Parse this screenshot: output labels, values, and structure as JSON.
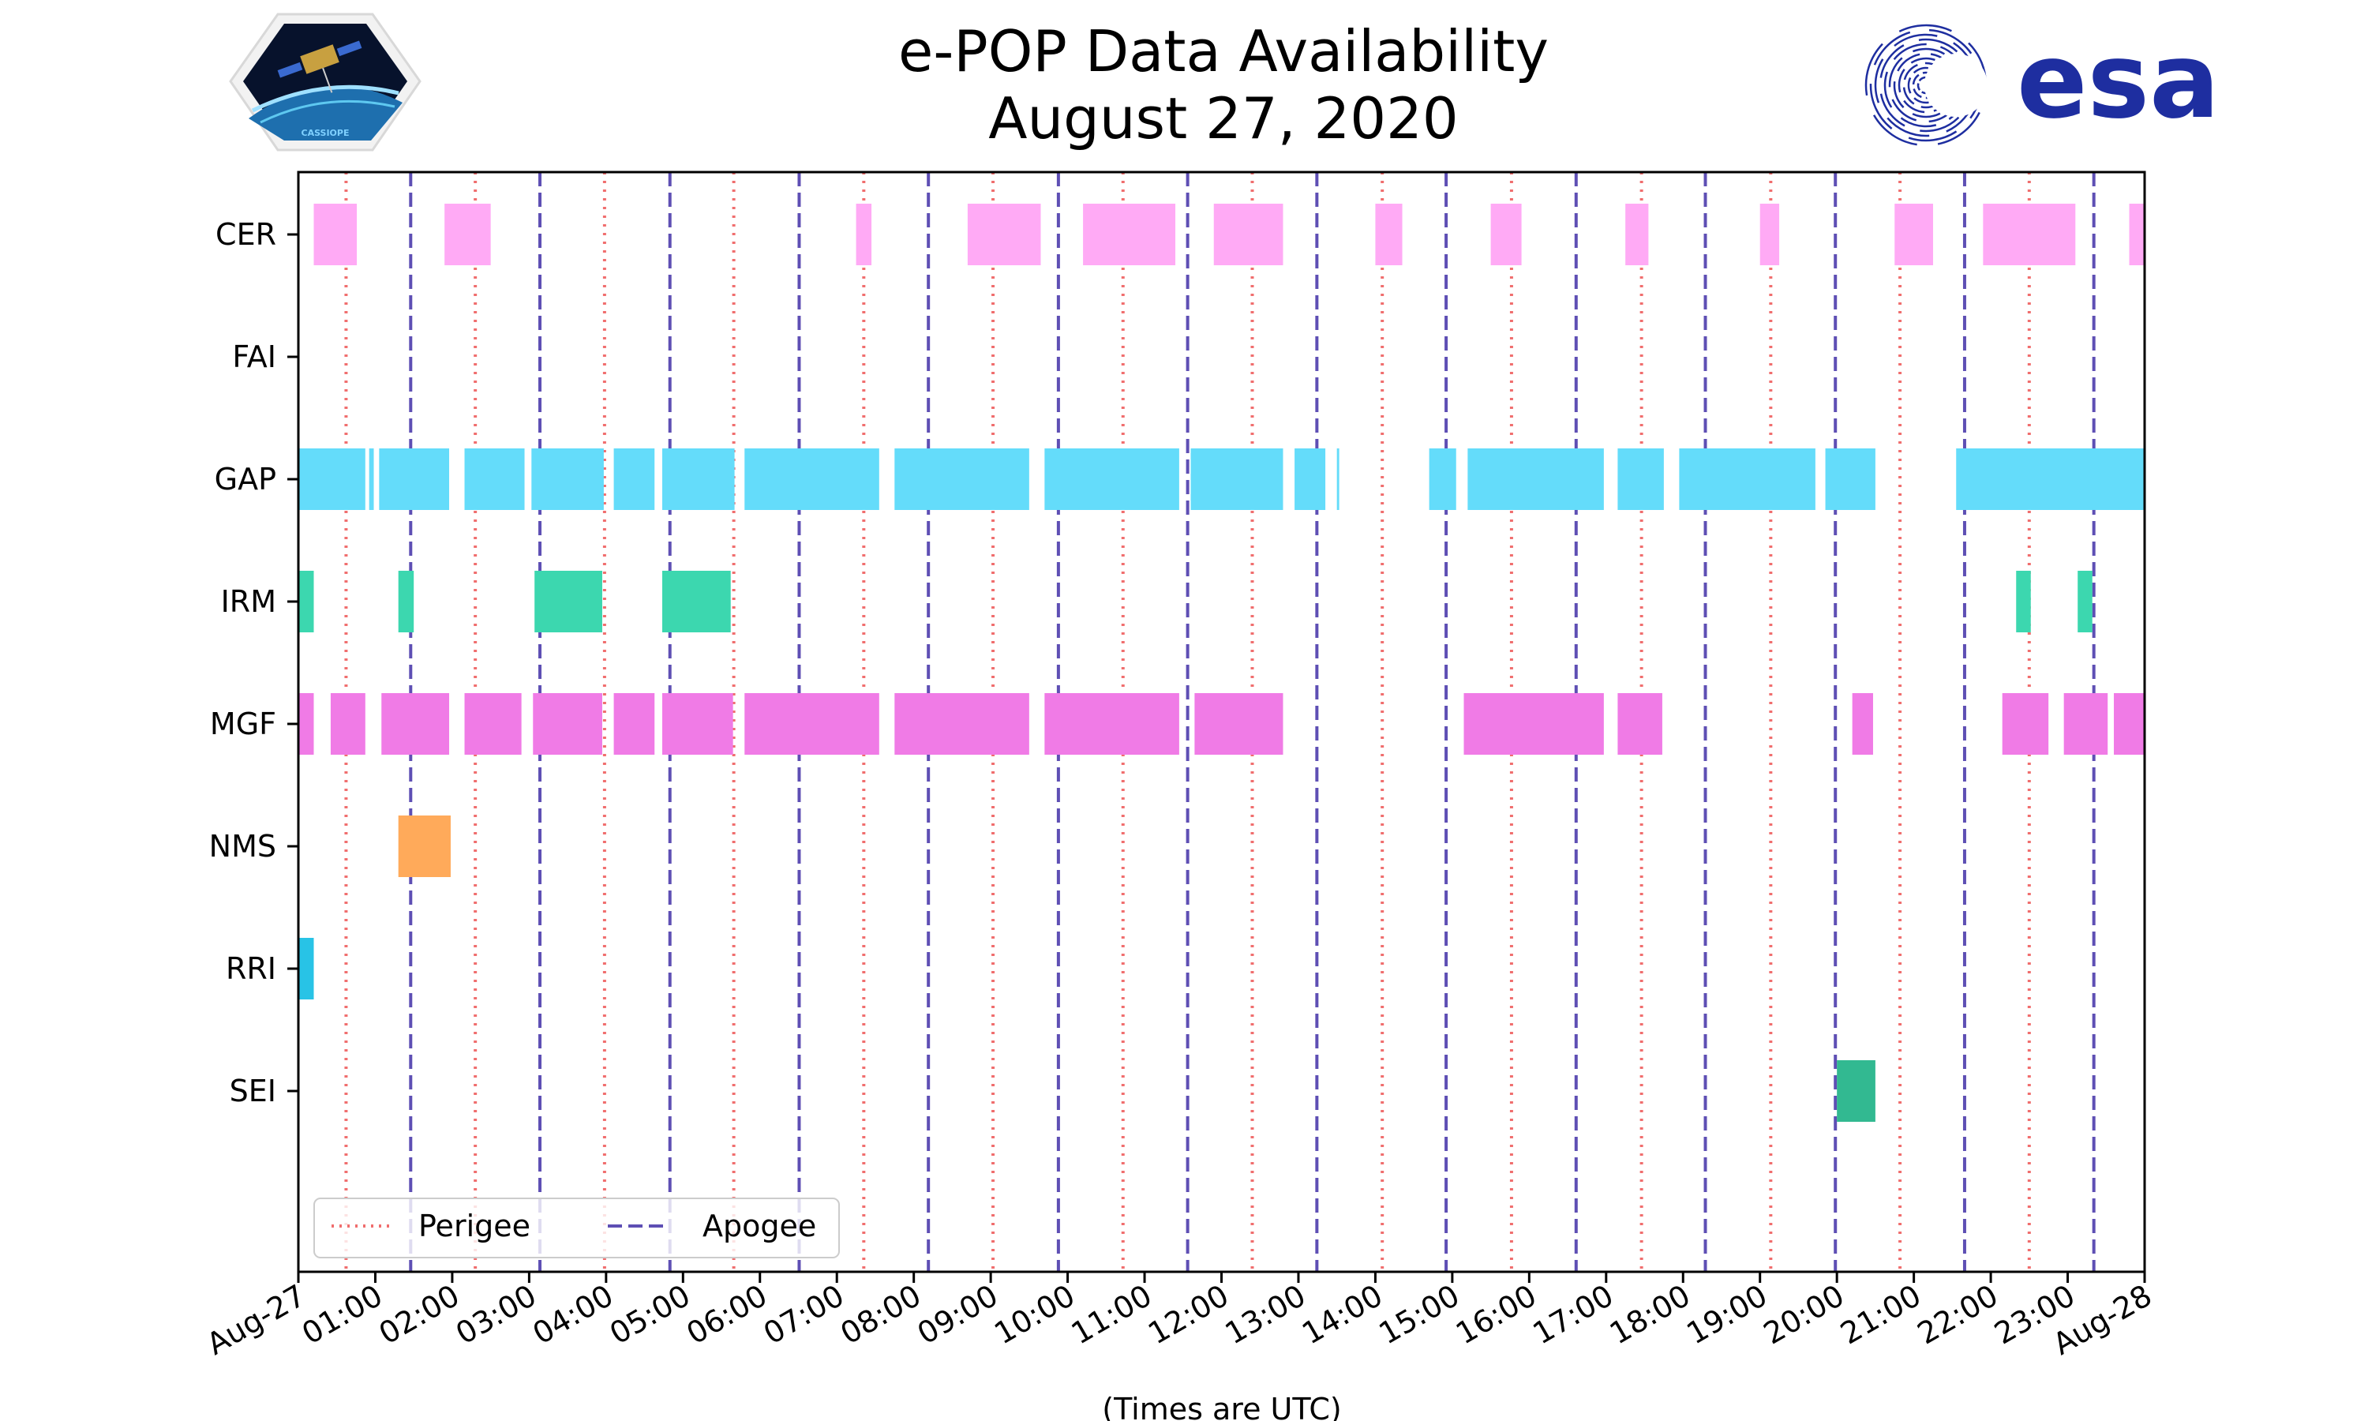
{
  "colors": {
    "perigee": "#f06e6e",
    "apogee": "#5e4fb4",
    "CER": "#ffaaf5",
    "GAP": "#64dcfa",
    "IRM": "#3cd7af",
    "MGF": "#f07be6",
    "NMS": "#ffaa5a",
    "RRI": "#28c3e6",
    "SEI": "#32b991",
    "esa_blue": "#1e2ea0"
  },
  "logos": {
    "left": {
      "icon": "cassiope-mission-logo",
      "text": "CASSIOPE"
    },
    "right": {
      "icon": "esa-logo",
      "text": "esa"
    }
  },
  "chart_data": {
    "type": "timeline",
    "title": "e-POP Data Availability",
    "subtitle": "August 27, 2020",
    "xlabel": "(Times are UTC)",
    "x_unit": "hours UTC on Aug-27",
    "xlim": [
      0,
      24
    ],
    "xtick_labels": [
      "Aug-27",
      "01:00",
      "02:00",
      "03:00",
      "04:00",
      "05:00",
      "06:00",
      "07:00",
      "08:00",
      "09:00",
      "10:00",
      "11:00",
      "12:00",
      "13:00",
      "14:00",
      "15:00",
      "16:00",
      "17:00",
      "18:00",
      "19:00",
      "20:00",
      "21:00",
      "22:00",
      "23:00",
      "Aug-28"
    ],
    "categories": [
      "CER",
      "FAI",
      "GAP",
      "IRM",
      "MGF",
      "NMS",
      "RRI",
      "SEI"
    ],
    "perigee": [
      0.62,
      2.3,
      3.98,
      5.66,
      7.35,
      9.03,
      10.72,
      12.4,
      14.09,
      15.77,
      17.46,
      19.14,
      20.82,
      22.5
    ],
    "apogee": [
      1.46,
      3.14,
      4.83,
      6.51,
      8.19,
      9.88,
      11.56,
      13.24,
      14.92,
      16.61,
      18.29,
      19.98,
      21.66,
      23.34
    ],
    "legend": {
      "perigee_label": "Perigee",
      "apogee_label": "Apogee",
      "location": "lower-left"
    },
    "series": [
      {
        "name": "CER",
        "intervals": [
          [
            0.2,
            0.76
          ],
          [
            1.9,
            2.5
          ],
          [
            7.25,
            7.45
          ],
          [
            8.7,
            9.65
          ],
          [
            10.2,
            11.4
          ],
          [
            11.9,
            12.8
          ],
          [
            14.0,
            14.35
          ],
          [
            15.5,
            15.9
          ],
          [
            17.25,
            17.55
          ],
          [
            19.0,
            19.25
          ],
          [
            20.75,
            21.25
          ],
          [
            21.9,
            23.1
          ],
          [
            23.8,
            24.0
          ]
        ]
      },
      {
        "name": "FAI",
        "intervals": []
      },
      {
        "name": "GAP",
        "intervals": [
          [
            0.0,
            0.87
          ],
          [
            0.92,
            0.98
          ],
          [
            1.05,
            1.96
          ],
          [
            2.16,
            2.94
          ],
          [
            3.03,
            3.97
          ],
          [
            4.1,
            4.63
          ],
          [
            4.73,
            5.67
          ],
          [
            5.8,
            7.55
          ],
          [
            7.75,
            9.5
          ],
          [
            9.7,
            11.45
          ],
          [
            11.6,
            12.8
          ],
          [
            12.95,
            13.35
          ],
          [
            13.5,
            13.53
          ],
          [
            14.7,
            15.05
          ],
          [
            15.2,
            16.97
          ],
          [
            17.15,
            17.75
          ],
          [
            17.95,
            19.72
          ],
          [
            19.85,
            20.5
          ],
          [
            21.55,
            24.0
          ]
        ]
      },
      {
        "name": "IRM",
        "intervals": [
          [
            0.0,
            0.2
          ],
          [
            1.3,
            1.5
          ],
          [
            3.07,
            3.95
          ],
          [
            4.73,
            5.62
          ],
          [
            22.33,
            22.52
          ],
          [
            23.13,
            23.32
          ]
        ]
      },
      {
        "name": "MGF",
        "intervals": [
          [
            0.0,
            0.2
          ],
          [
            0.42,
            0.87
          ],
          [
            1.08,
            1.96
          ],
          [
            2.16,
            2.9
          ],
          [
            3.05,
            3.95
          ],
          [
            4.1,
            4.63
          ],
          [
            4.73,
            5.65
          ],
          [
            5.8,
            7.55
          ],
          [
            7.75,
            9.5
          ],
          [
            9.7,
            11.45
          ],
          [
            11.65,
            12.8
          ],
          [
            15.15,
            16.97
          ],
          [
            17.15,
            17.73
          ],
          [
            20.2,
            20.47
          ],
          [
            22.15,
            22.75
          ],
          [
            22.95,
            23.52
          ],
          [
            23.6,
            24.0
          ]
        ]
      },
      {
        "name": "NMS",
        "intervals": [
          [
            1.3,
            1.98
          ]
        ]
      },
      {
        "name": "RRI",
        "intervals": [
          [
            0.0,
            0.2
          ]
        ]
      },
      {
        "name": "SEI",
        "intervals": [
          [
            20.0,
            20.5
          ]
        ]
      }
    ]
  }
}
